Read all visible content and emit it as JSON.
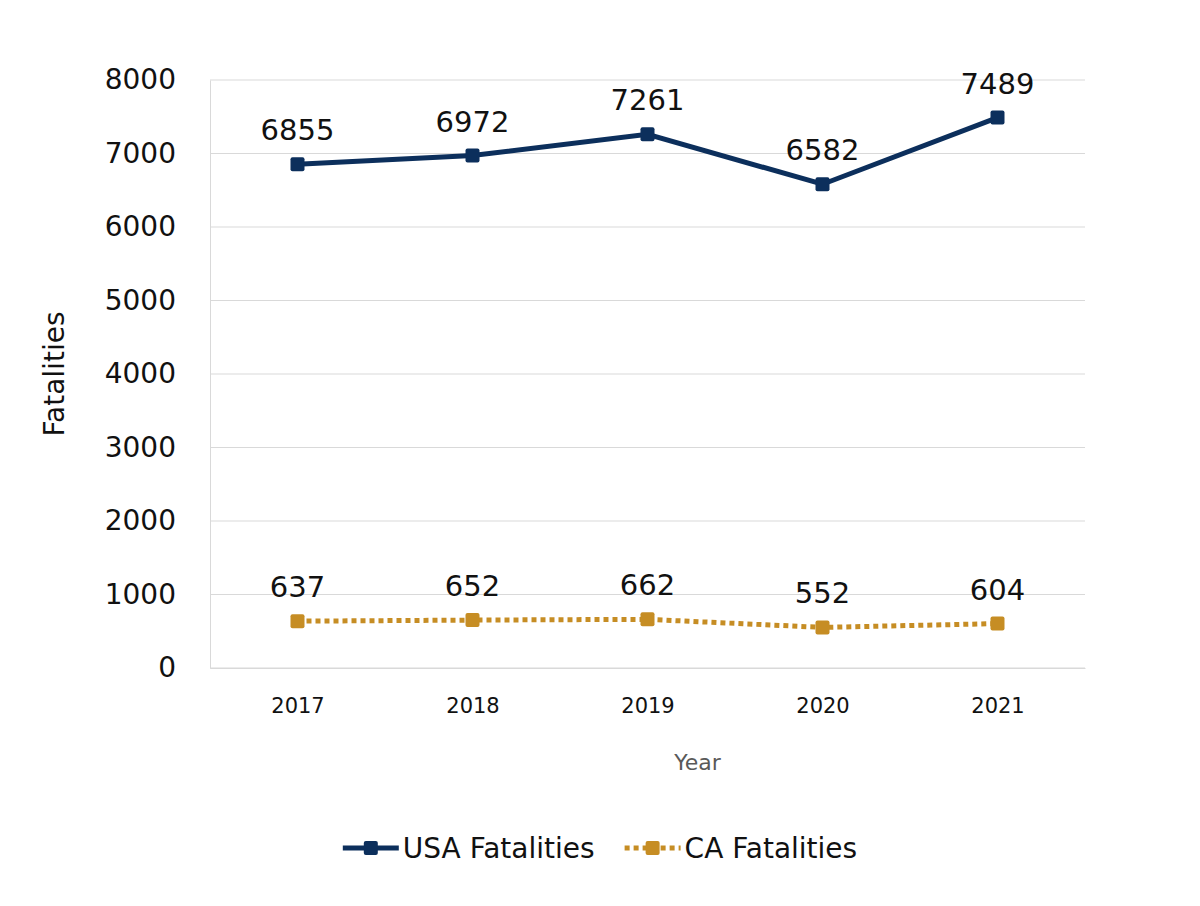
{
  "chart_data": {
    "type": "line",
    "x_label": "Year",
    "y_label": "Fatalities",
    "categories": [
      "2017",
      "2018",
      "2019",
      "2020",
      "2021"
    ],
    "series": [
      {
        "name": "USA Fatalities",
        "color": "#0c2f5c",
        "values": [
          6855,
          6972,
          7261,
          6582,
          7489
        ],
        "marker": "square",
        "line_style": "solid"
      },
      {
        "name": "CA Fatalities",
        "color": "#c68d24",
        "values": [
          637,
          652,
          662,
          552,
          604
        ],
        "marker": "square",
        "line_style": "dotted"
      }
    ],
    "ylim": [
      0,
      8000
    ],
    "yticks": [
      0,
      1000,
      2000,
      3000,
      4000,
      5000,
      6000,
      7000,
      8000
    ],
    "grid": true,
    "data_labels": true,
    "legend": "bottom"
  }
}
